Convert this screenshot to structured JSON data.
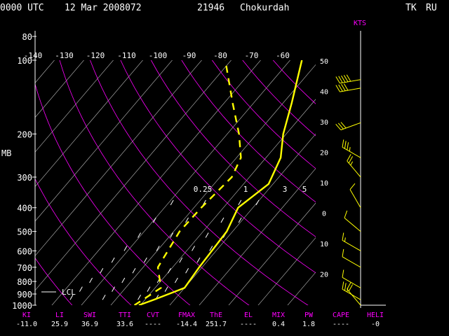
{
  "header": {
    "time": "0000 UTC",
    "date": "12 Mar 2008072",
    "station_id": "21946",
    "station_name": "Chokurdah",
    "region": "TK",
    "country": "RU"
  },
  "wind_axis_label": "KTS",
  "pressure_axis_label": "MB",
  "lcl_label": "LCL",
  "indices": [
    {
      "label": "KI",
      "value": "-11.0"
    },
    {
      "label": "LI",
      "value": "25.9"
    },
    {
      "label": "SWI",
      "value": "36.9"
    },
    {
      "label": "TTI",
      "value": "33.6"
    },
    {
      "label": "CVT",
      "value": "----"
    },
    {
      "label": "FMAX",
      "value": "-14.4"
    },
    {
      "label": "ThE",
      "value": "251.7"
    },
    {
      "label": "EL",
      "value": "----"
    },
    {
      "label": "MIX",
      "value": "0.4"
    },
    {
      "label": "PW",
      "value": "1.8"
    },
    {
      "label": "CAPE",
      "value": "----"
    },
    {
      "label": "HELI",
      "value": "-0"
    }
  ],
  "colors": {
    "background": "#000000",
    "text": "#ffffff",
    "accent": "#ff00ff",
    "profile": "#ffff00",
    "isotherm": "#ffffff",
    "adiabat": "#ff00ff"
  },
  "chart_data": {
    "type": "line",
    "subtype": "skew-T log-P sounding",
    "y_scale": "log",
    "ylabel": "MB",
    "ylim": [
      1000,
      80
    ],
    "pressure_ticks": [
      80,
      100,
      200,
      300,
      400,
      500,
      600,
      700,
      800,
      900,
      1000
    ],
    "top_temperature_ticks": [
      -140,
      -130,
      -120,
      -110,
      -100,
      -90,
      -80,
      -70,
      -60
    ],
    "right_temperature_ticks": [
      50,
      40,
      30,
      20,
      10,
      0,
      10,
      20
    ],
    "mixing_ratio_labels": [
      "0.25",
      "1",
      "3",
      "5"
    ],
    "grid": true,
    "series": [
      {
        "style": "solid",
        "points": [
          {
            "p": 1000,
            "t": -30.5
          },
          {
            "p": 950,
            "t": -27.0
          },
          {
            "p": 850,
            "t": -20.0
          },
          {
            "p": 700,
            "t": -21.0
          },
          {
            "p": 500,
            "t": -22.0
          },
          {
            "p": 400,
            "t": -25.0
          },
          {
            "p": 320,
            "t": -21.5
          },
          {
            "p": 250,
            "t": -25.0
          },
          {
            "p": 200,
            "t": -31.0
          },
          {
            "p": 150,
            "t": -37.0
          },
          {
            "p": 100,
            "t": -46.0
          }
        ]
      },
      {
        "style": "dashed",
        "points": [
          {
            "p": 1000,
            "t": -32.0
          },
          {
            "p": 850,
            "t": -28.0
          },
          {
            "p": 700,
            "t": -35.0
          },
          {
            "p": 500,
            "t": -38.0
          },
          {
            "p": 400,
            "t": -37.5
          },
          {
            "p": 300,
            "t": -36.0
          },
          {
            "p": 250,
            "t": -38.5
          },
          {
            "p": 200,
            "t": -46.0
          },
          {
            "p": 150,
            "t": -57.0
          },
          {
            "p": 100,
            "t": -72.0
          }
        ]
      }
    ],
    "wind_barbs": [
      {
        "p": 1000,
        "dir": 320,
        "spd": 20
      },
      {
        "p": 950,
        "dir": 300,
        "spd": 15
      },
      {
        "p": 850,
        "dir": 300,
        "spd": 10
      },
      {
        "p": 700,
        "dir": 300,
        "spd": 10
      },
      {
        "p": 600,
        "dir": 300,
        "spd": 5
      },
      {
        "p": 500,
        "dir": 310,
        "spd": 10
      },
      {
        "p": 400,
        "dir": 330,
        "spd": 10
      },
      {
        "p": 300,
        "dir": 320,
        "spd": 15
      },
      {
        "p": 250,
        "dir": 300,
        "spd": 25
      },
      {
        "p": 180,
        "dir": 250,
        "spd": 30
      },
      {
        "p": 130,
        "dir": 260,
        "spd": 40
      },
      {
        "p": 120,
        "dir": 260,
        "spd": 50
      }
    ]
  }
}
